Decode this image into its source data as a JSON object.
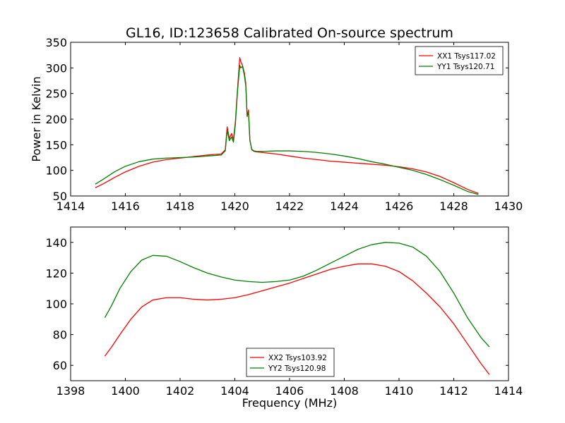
{
  "figure": {
    "title": "GL16, ID:123658 Calibrated On-source spectrum"
  },
  "chart_data": [
    {
      "type": "line",
      "title": "GL16, ID:123658 Calibrated On-source spectrum",
      "xlabel": "",
      "ylabel": "Power in Kelvin",
      "xlim": [
        1414,
        1430
      ],
      "ylim": [
        50,
        350
      ],
      "xticks": [
        1414,
        1416,
        1418,
        1420,
        1422,
        1424,
        1426,
        1428,
        1430
      ],
      "yticks": [
        50,
        100,
        150,
        200,
        250,
        300,
        350
      ],
      "grid": false,
      "legend_position": "top-right",
      "series": [
        {
          "name": "XX1 Tsys117.02",
          "color": "#ff0000",
          "x": [
            1414.9,
            1415.2,
            1415.6,
            1416.0,
            1416.5,
            1417.0,
            1417.5,
            1418.0,
            1418.5,
            1419.0,
            1419.5,
            1419.65,
            1419.72,
            1419.8,
            1419.88,
            1419.95,
            1420.02,
            1420.1,
            1420.18,
            1420.22,
            1420.28,
            1420.35,
            1420.4,
            1420.45,
            1420.5,
            1420.55,
            1420.62,
            1420.7,
            1420.8,
            1421.0,
            1421.5,
            1422.0,
            1422.5,
            1423.0,
            1423.5,
            1424.0,
            1424.5,
            1425.0,
            1425.5,
            1426.0,
            1426.5,
            1427.0,
            1427.5,
            1428.0,
            1428.5,
            1428.9
          ],
          "y": [
            66,
            74,
            86,
            97,
            108,
            116,
            121,
            124,
            127,
            130,
            132,
            140,
            185,
            162,
            172,
            160,
            195,
            260,
            320,
            312,
            305,
            290,
            270,
            205,
            218,
            160,
            140,
            137,
            136,
            135,
            132,
            128,
            124,
            121,
            118,
            116,
            114,
            112,
            110,
            107,
            103,
            97,
            88,
            76,
            63,
            55
          ]
        },
        {
          "name": "YY1 Tsys120.71",
          "color": "#008000",
          "x": [
            1414.9,
            1415.2,
            1415.6,
            1416.0,
            1416.5,
            1417.0,
            1417.5,
            1418.0,
            1418.5,
            1419.0,
            1419.5,
            1419.65,
            1419.72,
            1419.8,
            1419.88,
            1419.95,
            1420.02,
            1420.1,
            1420.18,
            1420.22,
            1420.28,
            1420.35,
            1420.4,
            1420.45,
            1420.5,
            1420.55,
            1420.62,
            1420.7,
            1420.8,
            1421.0,
            1421.5,
            1422.0,
            1422.5,
            1423.0,
            1423.5,
            1424.0,
            1424.5,
            1425.0,
            1425.5,
            1426.0,
            1426.5,
            1427.0,
            1427.5,
            1428.0,
            1428.5,
            1428.9
          ],
          "y": [
            73,
            83,
            97,
            108,
            117,
            122,
            124,
            125,
            126,
            128,
            130,
            138,
            178,
            158,
            165,
            155,
            190,
            255,
            305,
            300,
            303,
            285,
            265,
            207,
            212,
            158,
            141,
            138,
            137,
            137,
            138,
            138,
            137,
            135,
            132,
            128,
            123,
            117,
            112,
            106,
            100,
            92,
            82,
            71,
            59,
            53
          ]
        }
      ]
    },
    {
      "type": "line",
      "title": "",
      "xlabel": "Frequency (MHz)",
      "ylabel": "",
      "xlim": [
        1398,
        1414
      ],
      "ylim": [
        50,
        150
      ],
      "xticks": [
        1398,
        1400,
        1402,
        1404,
        1406,
        1408,
        1410,
        1412,
        1414
      ],
      "yticks": [
        60,
        80,
        100,
        120,
        140
      ],
      "grid": false,
      "legend_position": "bottom-center",
      "series": [
        {
          "name": "XX2 Tsys103.92",
          "color": "#ff0000",
          "x": [
            1399.25,
            1399.5,
            1399.8,
            1400.2,
            1400.6,
            1401.0,
            1401.5,
            1402.0,
            1402.5,
            1403.0,
            1403.5,
            1404.0,
            1404.5,
            1405.0,
            1405.5,
            1406.0,
            1406.5,
            1407.0,
            1407.5,
            1408.0,
            1408.5,
            1409.0,
            1409.5,
            1410.0,
            1410.5,
            1411.0,
            1411.5,
            1412.0,
            1412.5,
            1413.0,
            1413.3
          ],
          "y": [
            66,
            72,
            80,
            90,
            98,
            102.5,
            104,
            104,
            103,
            102.5,
            103,
            104,
            106,
            108.5,
            111,
            113.5,
            116.5,
            119.5,
            122.5,
            124.5,
            126,
            126,
            124.5,
            121,
            115,
            107,
            98,
            87,
            74,
            61,
            54
          ]
        },
        {
          "name": "YY2 Tsys120.98",
          "color": "#008000",
          "x": [
            1399.25,
            1399.5,
            1399.8,
            1400.2,
            1400.6,
            1401.0,
            1401.5,
            1402.0,
            1402.5,
            1403.0,
            1403.5,
            1404.0,
            1404.5,
            1405.0,
            1405.5,
            1406.0,
            1406.5,
            1407.0,
            1407.5,
            1408.0,
            1408.5,
            1409.0,
            1409.5,
            1410.0,
            1410.5,
            1411.0,
            1411.5,
            1412.0,
            1412.5,
            1413.0,
            1413.3
          ],
          "y": [
            91,
            99,
            110,
            121,
            128.5,
            131.5,
            131,
            127.5,
            123.5,
            120,
            117.5,
            115.5,
            114.5,
            114,
            114.5,
            115.5,
            118,
            122,
            126.5,
            131,
            135.5,
            138.5,
            140,
            139.5,
            137,
            131,
            121,
            107,
            91,
            78,
            72
          ]
        }
      ]
    }
  ]
}
